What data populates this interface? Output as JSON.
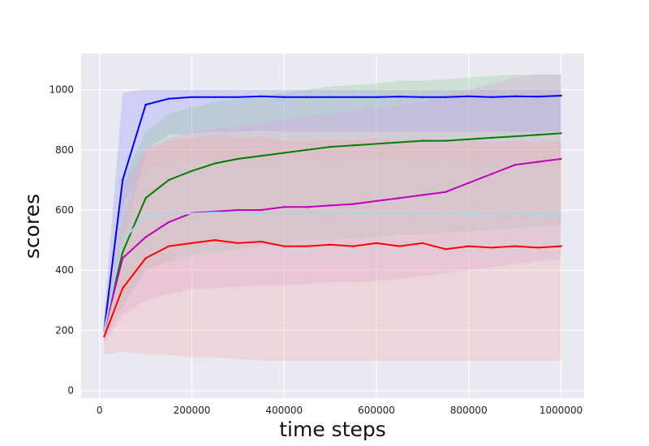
{
  "chart_data": {
    "type": "line",
    "title": "",
    "xlabel": "time steps",
    "ylabel": "scores",
    "xlim": [
      -40000,
      1050000
    ],
    "ylim": [
      -25,
      1120
    ],
    "xticks": [
      0,
      200000,
      400000,
      600000,
      800000,
      1000000
    ],
    "xtick_labels": [
      "0",
      "200000",
      "400000",
      "600000",
      "800000",
      "1000000"
    ],
    "yticks": [
      0,
      200,
      400,
      600,
      800,
      1000
    ],
    "ytick_labels": [
      "0",
      "200",
      "400",
      "600",
      "800",
      "1000"
    ],
    "grid": true,
    "background": "#e9e9f1",
    "x": [
      10000,
      50000,
      100000,
      150000,
      200000,
      250000,
      300000,
      350000,
      400000,
      450000,
      500000,
      550000,
      600000,
      650000,
      700000,
      750000,
      800000,
      850000,
      900000,
      950000,
      1000000
    ],
    "series": [
      {
        "color": "#0000ff",
        "band_color": "#8c8cff",
        "values": [
          200,
          700,
          950,
          970,
          975,
          975,
          975,
          978,
          975,
          975,
          975,
          975,
          975,
          977,
          975,
          975,
          978,
          975,
          978,
          977,
          980
        ],
        "lower": [
          150,
          480,
          800,
          850,
          855,
          860,
          860,
          865,
          860,
          860,
          860,
          860,
          860,
          860,
          860,
          860,
          860,
          860,
          860,
          860,
          860
        ],
        "upper": [
          250,
          990,
          1000,
          1000,
          1000,
          1000,
          1000,
          1000,
          1000,
          1000,
          1000,
          1000,
          1000,
          1000,
          1000,
          1000,
          1000,
          1000,
          1000,
          1000,
          1000
        ]
      },
      {
        "color": "#008000",
        "band_color": "#88c488",
        "values": [
          200,
          460,
          640,
          700,
          730,
          755,
          770,
          780,
          790,
          800,
          810,
          815,
          820,
          825,
          830,
          830,
          835,
          840,
          845,
          850,
          855
        ],
        "lower": [
          170,
          280,
          400,
          430,
          450,
          460,
          470,
          480,
          490,
          500,
          500,
          505,
          510,
          520,
          520,
          525,
          530,
          535,
          540,
          545,
          550
        ],
        "upper": [
          240,
          700,
          860,
          920,
          940,
          960,
          970,
          980,
          990,
          1000,
          1010,
          1015,
          1020,
          1030,
          1030,
          1035,
          1040,
          1045,
          1050,
          1050,
          1050
        ]
      },
      {
        "color": "#bf00bf",
        "band_color": "#e09ae0",
        "values": [
          200,
          440,
          510,
          560,
          590,
          595,
          600,
          600,
          610,
          610,
          615,
          620,
          630,
          640,
          650,
          660,
          690,
          720,
          750,
          760,
          770
        ],
        "lower": [
          160,
          250,
          300,
          320,
          340,
          340,
          345,
          350,
          350,
          355,
          360,
          360,
          365,
          370,
          380,
          390,
          400,
          410,
          420,
          430,
          440
        ],
        "upper": [
          240,
          680,
          800,
          840,
          860,
          870,
          880,
          890,
          900,
          910,
          920,
          930,
          940,
          950,
          960,
          980,
          1000,
          1020,
          1040,
          1050,
          1050
        ]
      },
      {
        "color": "#a8d8e8",
        "band_color": "#c6e2ea",
        "values": [
          200,
          500,
          580,
          590,
          588,
          592,
          590,
          585,
          590,
          590,
          588,
          592,
          590,
          590,
          588,
          590,
          585,
          588,
          590,
          585,
          582
        ],
        "lower": [
          160,
          380,
          430,
          440,
          440,
          445,
          440,
          440,
          440,
          440,
          438,
          440,
          440,
          440,
          438,
          440,
          436,
          438,
          440,
          436,
          434
        ],
        "upper": [
          240,
          620,
          740,
          760,
          760,
          765,
          760,
          755,
          760,
          760,
          758,
          762,
          760,
          760,
          758,
          760,
          755,
          758,
          760,
          755,
          750
        ]
      },
      {
        "color": "#ff0000",
        "band_color": "#f4a0a0",
        "values": [
          180,
          340,
          440,
          480,
          490,
          500,
          490,
          495,
          480,
          480,
          485,
          480,
          490,
          480,
          490,
          470,
          480,
          475,
          480,
          475,
          480
        ],
        "lower": [
          120,
          130,
          120,
          120,
          110,
          110,
          105,
          100,
          100,
          100,
          100,
          100,
          100,
          100,
          100,
          100,
          100,
          100,
          100,
          100,
          100
        ],
        "upper": [
          240,
          560,
          800,
          830,
          840,
          850,
          840,
          845,
          830,
          830,
          835,
          830,
          840,
          830,
          840,
          820,
          830,
          825,
          830,
          825,
          830
        ]
      }
    ]
  }
}
